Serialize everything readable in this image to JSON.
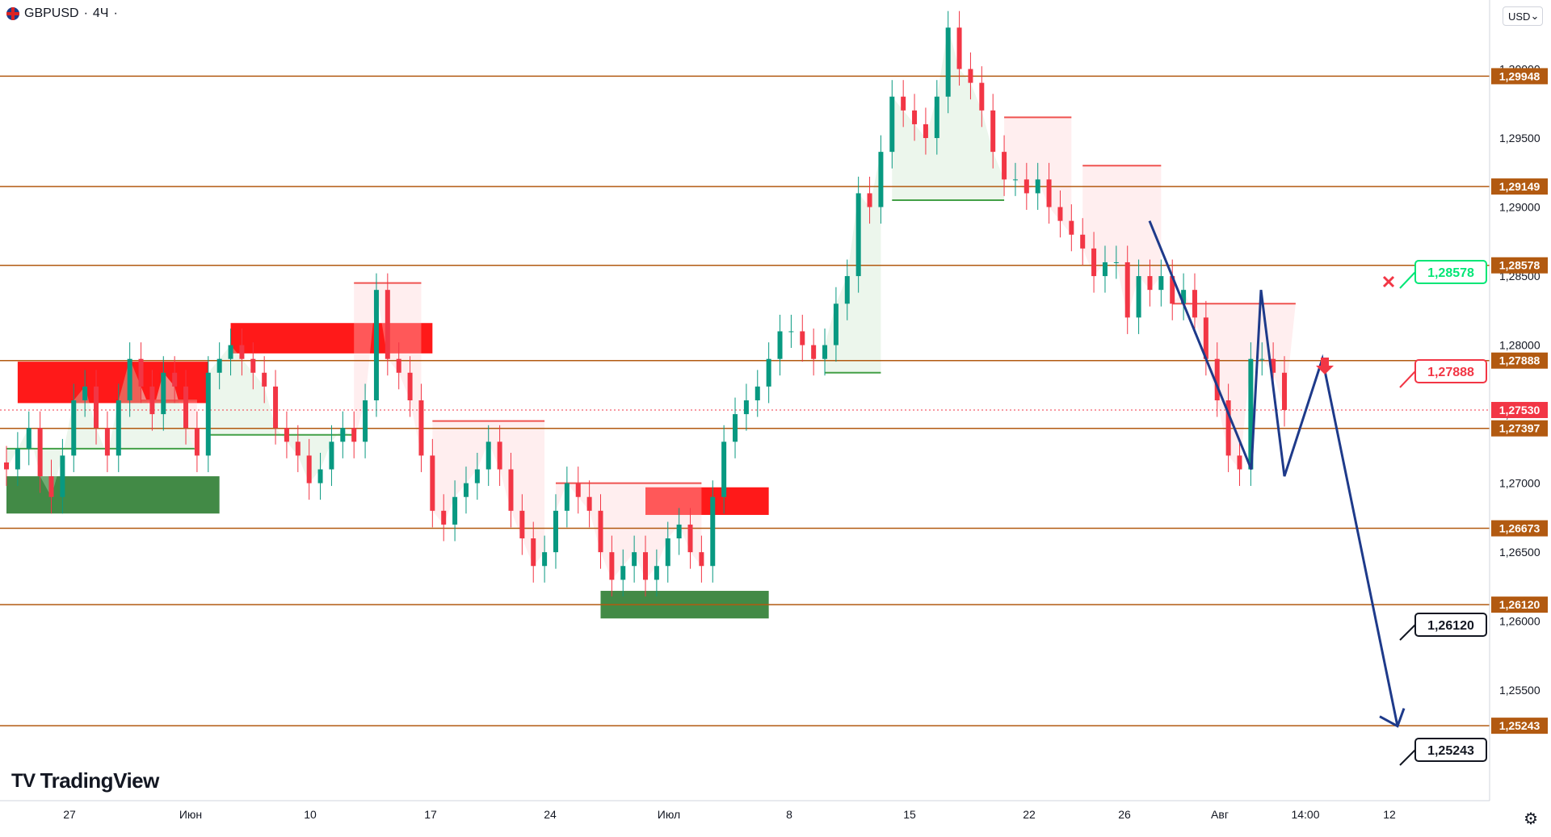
{
  "header": {
    "symbol": "GBPUSD",
    "interval": "4Ч",
    "flag_icon": "gb-us-flag-icon"
  },
  "currency_selector": {
    "value": "USD"
  },
  "logo": {
    "text": "TradingView",
    "mark": "TV"
  },
  "colors": {
    "level": "#b25a11",
    "up": "#089981",
    "down": "#f23645",
    "forecast": "#1e3a8a",
    "green_zone": "#2e7d32",
    "red_zone": "#ff0000",
    "up_label": "#00e676"
  },
  "chart_data": {
    "type": "candlestick",
    "symbol": "GBPUSD",
    "timeframe": "4Ч",
    "y_range": [
      1.247,
      1.305
    ],
    "y_ticks": [
      "1,30000",
      "1,29500",
      "1,29000",
      "1,28500",
      "1,28000",
      "1,27500",
      "1,27000",
      "1,26500",
      "1,26000",
      "1,25500"
    ],
    "x_ticks": [
      "27",
      "Июн",
      "10",
      "17",
      "24",
      "Июл",
      "8",
      "15",
      "22",
      "26",
      "Авг",
      "14:00",
      "12"
    ],
    "horizontal_levels": [
      {
        "price": 1.29948,
        "label": "1,29948"
      },
      {
        "price": 1.29149,
        "label": "1,29149"
      },
      {
        "price": 1.28578,
        "label": "1,28578"
      },
      {
        "price": 1.27888,
        "label": "1,27888"
      },
      {
        "price": 1.27397,
        "label": "1,27397"
      },
      {
        "price": 1.26673,
        "label": "1,26673"
      },
      {
        "price": 1.2612,
        "label": "1,26120"
      },
      {
        "price": 1.25243,
        "label": "1,25243"
      }
    ],
    "current_price": {
      "price": 1.2753,
      "label": "1,27530"
    },
    "callouts": [
      {
        "label": "1,28578",
        "style": "green"
      },
      {
        "label": "1,27888",
        "style": "red"
      },
      {
        "label": "1,26120",
        "style": "black"
      },
      {
        "label": "1,25243",
        "style": "black"
      }
    ],
    "forecast_path": [
      1.289,
      1.271,
      1.284,
      1.2705,
      1.279,
      1.2524
    ],
    "close_path": [
      1.271,
      1.2725,
      1.274,
      1.2705,
      1.269,
      1.272,
      1.276,
      1.277,
      1.274,
      1.272,
      1.276,
      1.279,
      1.277,
      1.275,
      1.278,
      1.277,
      1.274,
      1.272,
      1.278,
      1.279,
      1.28,
      1.279,
      1.278,
      1.277,
      1.274,
      1.273,
      1.272,
      1.27,
      1.271,
      1.273,
      1.274,
      1.273,
      1.276,
      1.284,
      1.279,
      1.278,
      1.276,
      1.272,
      1.268,
      1.267,
      1.269,
      1.27,
      1.271,
      1.273,
      1.271,
      1.268,
      1.266,
      1.264,
      1.265,
      1.268,
      1.27,
      1.269,
      1.268,
      1.265,
      1.263,
      1.264,
      1.265,
      1.263,
      1.264,
      1.266,
      1.267,
      1.265,
      1.264,
      1.269,
      1.273,
      1.275,
      1.276,
      1.277,
      1.279,
      1.281,
      1.281,
      1.28,
      1.279,
      1.28,
      1.283,
      1.285,
      1.291,
      1.29,
      1.294,
      1.298,
      1.297,
      1.296,
      1.295,
      1.298,
      1.303,
      1.3,
      1.299,
      1.297,
      1.294,
      1.292,
      1.292,
      1.291,
      1.292,
      1.29,
      1.289,
      1.288,
      1.287,
      1.285,
      1.286,
      1.286,
      1.282,
      1.285,
      1.284,
      1.285,
      1.283,
      1.284,
      1.282,
      1.279,
      1.276,
      1.272,
      1.271,
      1.279,
      1.279,
      1.278,
      1.2753
    ],
    "supertrend_up": [
      {
        "from": 0,
        "to": 17,
        "value": 1.2725
      },
      {
        "from": 18,
        "to": 31,
        "value": 1.2735
      },
      {
        "from": 73,
        "to": 78,
        "value": 1.278
      },
      {
        "from": 79,
        "to": 89,
        "value": 1.2905
      }
    ],
    "supertrend_down": [
      {
        "from": 12,
        "to": 17,
        "value": 1.276
      },
      {
        "from": 31,
        "to": 37,
        "value": 1.2845
      },
      {
        "from": 38,
        "to": 48,
        "value": 1.2745
      },
      {
        "from": 49,
        "to": 62,
        "value": 1.27
      },
      {
        "from": 89,
        "to": 95,
        "value": 1.2965
      },
      {
        "from": 96,
        "to": 103,
        "value": 1.293
      },
      {
        "from": 104,
        "to": 115,
        "value": 1.283
      }
    ],
    "zones": [
      {
        "color": "red",
        "from": 1,
        "to": 18,
        "top": 1.2788,
        "bottom": 1.2758
      },
      {
        "color": "green",
        "from": 0,
        "to": 19,
        "top": 1.2705,
        "bottom": 1.2678
      },
      {
        "color": "red",
        "from": 20,
        "to": 38,
        "top": 1.2816,
        "bottom": 1.2794
      },
      {
        "color": "red",
        "from": 57,
        "to": 68,
        "top": 1.2697,
        "bottom": 1.2677
      },
      {
        "color": "green",
        "from": 53,
        "to": 68,
        "top": 1.2622,
        "bottom": 1.2602
      }
    ]
  }
}
